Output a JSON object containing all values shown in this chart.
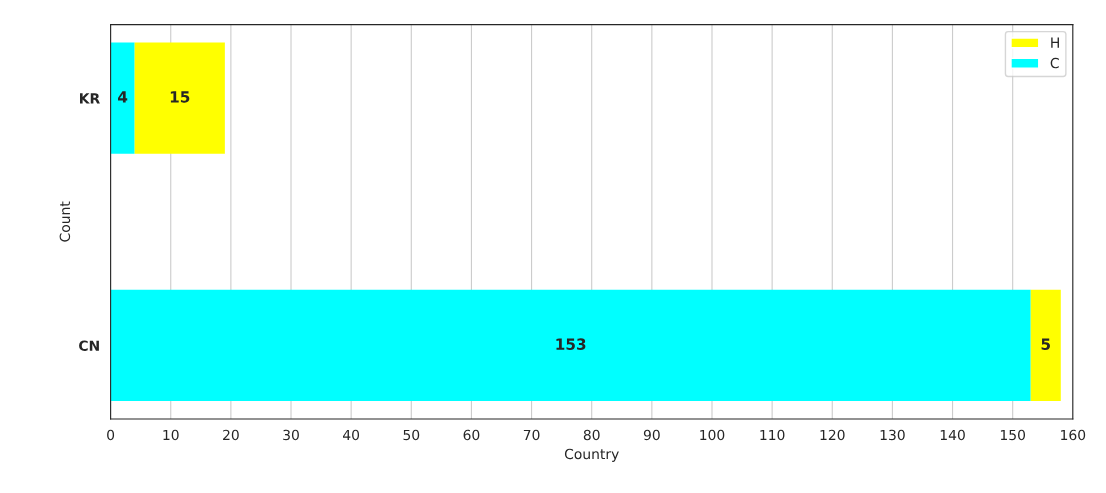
{
  "chart_data": {
    "type": "bar",
    "orientation": "horizontal",
    "stacked": true,
    "categories": [
      "KR",
      "CN"
    ],
    "series": [
      {
        "name": "C",
        "color": "#00ffff",
        "values": [
          4,
          153
        ]
      },
      {
        "name": "H",
        "color": "#ffff00",
        "values": [
          15,
          5
        ]
      }
    ],
    "xlabel": "Country",
    "ylabel": "Count",
    "xlim": [
      0,
      160
    ],
    "xticks": [
      0,
      10,
      20,
      30,
      40,
      50,
      60,
      70,
      80,
      90,
      100,
      110,
      120,
      130,
      140,
      150,
      160
    ],
    "grid": "x",
    "legend": "top right",
    "data_labels": true
  }
}
